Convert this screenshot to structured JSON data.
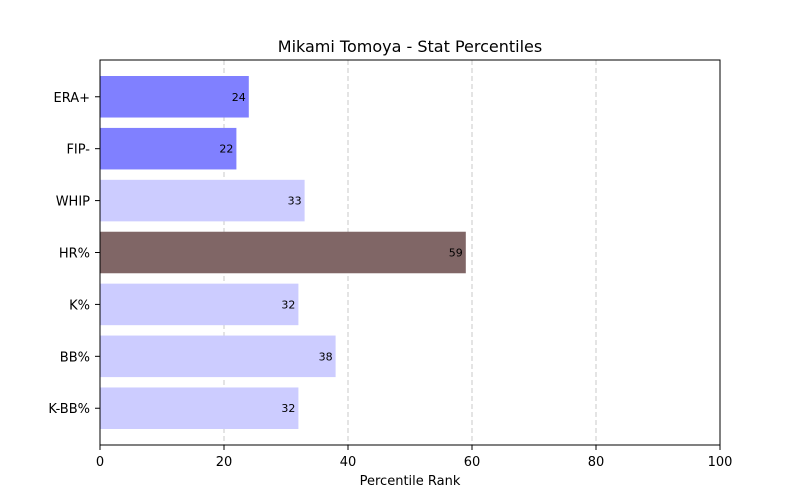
{
  "chart_data": {
    "type": "bar",
    "orientation": "horizontal",
    "title": "Mikami Tomoya - Stat Percentiles",
    "xlabel": "Percentile Rank",
    "ylabel": "",
    "xlim": [
      0,
      100
    ],
    "xticks": [
      "0",
      "20",
      "40",
      "60",
      "80",
      "100"
    ],
    "grid": "x, dashed",
    "categories": [
      "ERA+",
      "FIP-",
      "WHIP",
      "HR%",
      "K%",
      "BB%",
      "K-BB%"
    ],
    "values": [
      24,
      22,
      33,
      59,
      32,
      38,
      32
    ],
    "colors": [
      "#8080ff",
      "#8080ff",
      "#ccccff",
      "#806666",
      "#ccccff",
      "#ccccff",
      "#ccccff"
    ]
  }
}
